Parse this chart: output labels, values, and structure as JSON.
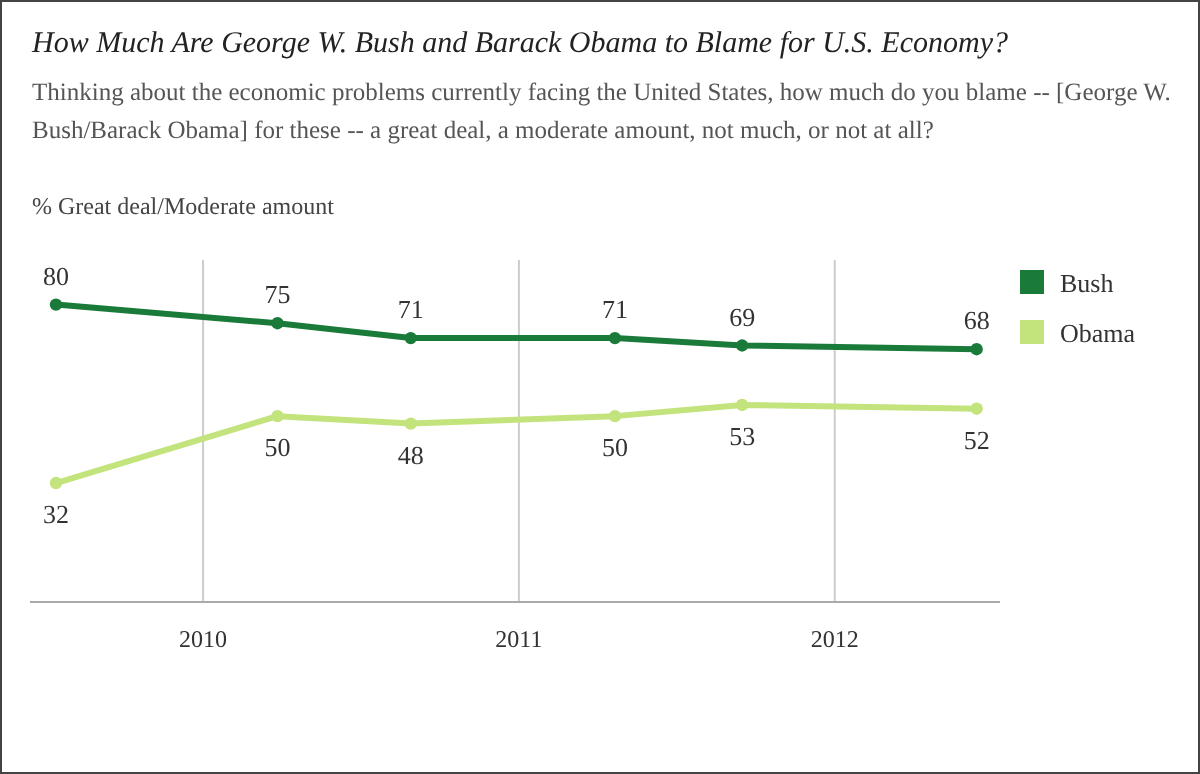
{
  "chart_data": {
    "type": "line",
    "title": "How Much Are George W. Bush and Barack Obama to Blame for U.S. Economy?",
    "subtitle": "Thinking about the economic problems currently facing the United States, how much do you blame -- [George W. Bush/Barack Obama] for these -- a great deal, a moderate amount, not much, or not at all?",
    "ylabel": "% Great deal/Moderate amount",
    "x": [
      "2009-07-15",
      "2010-03-28",
      "2010-08-29",
      "2011-04-22",
      "2011-09-16",
      "2012-06-13"
    ],
    "series": [
      {
        "name": "Bush",
        "color": "#1a7a3a",
        "values": [
          80,
          75,
          71,
          71,
          69,
          68
        ]
      },
      {
        "name": "Obama",
        "color": "#c3e37d",
        "values": [
          32,
          50,
          48,
          50,
          53,
          52
        ]
      }
    ],
    "xlim": [
      "2009-06-15",
      "2012-07-10"
    ],
    "xticks": [
      {
        "value": "2010-01-01",
        "label": "2010"
      },
      {
        "value": "2011-01-01",
        "label": "2011"
      },
      {
        "value": "2012-01-01",
        "label": "2012"
      }
    ],
    "ylim": [
      0,
      92
    ],
    "tick_labels": "x",
    "grid": "x",
    "legend": "right",
    "data_labels": true,
    "marker": "circle",
    "line_style": "solid"
  }
}
